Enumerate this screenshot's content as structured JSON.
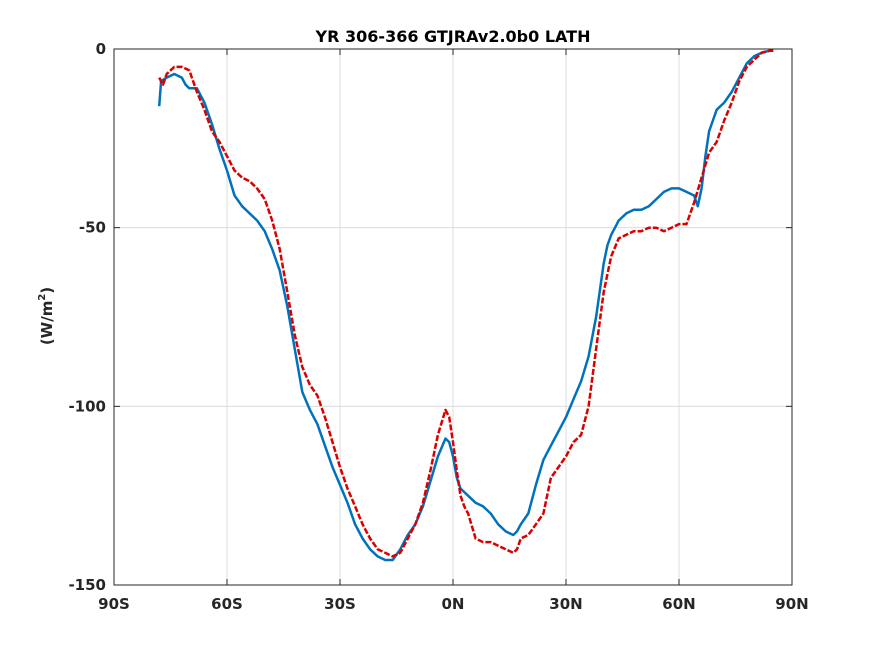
{
  "chart_data": {
    "type": "line",
    "title": "YR 306-366 GTJRAv2.0b0 LATH",
    "ylabel_main": "(W/m",
    "ylabel_sup": "2",
    "ylabel_close": ")",
    "xlabel": "",
    "xlim": [
      -90,
      90
    ],
    "ylim": [
      -150,
      0
    ],
    "xticks": [
      -90,
      -60,
      -30,
      0,
      30,
      60,
      90
    ],
    "xtick_labels": [
      "90S",
      "60S",
      "30S",
      "0N",
      "30N",
      "60N",
      "90N"
    ],
    "yticks": [
      0,
      -50,
      -100,
      -150
    ],
    "ytick_labels": [
      "0",
      "-50",
      "-100",
      "-150"
    ],
    "grid": true,
    "series": [
      {
        "color": "#0072BD",
        "dash": "solid",
        "x": [
          -78,
          -77.5,
          -76,
          -74,
          -72,
          -71,
          -70,
          -68,
          -66,
          -64,
          -62,
          -60,
          -58,
          -56,
          -54,
          -52,
          -50,
          -48,
          -46,
          -44,
          -42,
          -40,
          -38,
          -36,
          -34,
          -32,
          -30,
          -28,
          -26,
          -24,
          -22,
          -20,
          -18,
          -16,
          -14,
          -13,
          -12,
          -10,
          -8,
          -6,
          -4,
          -2,
          -1,
          0,
          1,
          2,
          3,
          4,
          6,
          8,
          10,
          12,
          14,
          16,
          17,
          18,
          20,
          22,
          24,
          26,
          28,
          30,
          32,
          34,
          36,
          38,
          40,
          41,
          42,
          43,
          44,
          46,
          48,
          50,
          52,
          54,
          56,
          58,
          60,
          62,
          64,
          65,
          66,
          67,
          68,
          69,
          70,
          72,
          74,
          76,
          78,
          80,
          82,
          84,
          85
        ],
        "y": [
          -16,
          -9,
          -8,
          -7,
          -8,
          -10,
          -11,
          -11,
          -15,
          -21,
          -28,
          -34,
          -41,
          -44,
          -46,
          -48,
          -51,
          -56,
          -62,
          -72,
          -84,
          -96,
          -101,
          -105,
          -111,
          -117,
          -122,
          -127,
          -133,
          -137,
          -140,
          -142,
          -143,
          -143,
          -140,
          -138,
          -136,
          -133,
          -128,
          -121,
          -114,
          -109,
          -110,
          -114,
          -120,
          -123,
          -124,
          -125,
          -127,
          -128,
          -130,
          -133,
          -135,
          -136,
          -135,
          -133,
          -130,
          -122,
          -115,
          -111,
          -107,
          -103,
          -98,
          -93,
          -86,
          -75,
          -60,
          -55,
          -52,
          -50,
          -48,
          -46,
          -45,
          -45,
          -44,
          -42,
          -40,
          -39,
          -39,
          -40,
          -41,
          -44,
          -39,
          -30,
          -23,
          -20,
          -17,
          -15,
          -12,
          -8,
          -4,
          -2,
          -1,
          -0.5,
          -0.5
        ]
      },
      {
        "color": "#D90000",
        "dash": "dashed",
        "x": [
          -78,
          -77,
          -76,
          -74,
          -72,
          -70,
          -68,
          -66,
          -64,
          -62,
          -60,
          -58,
          -56,
          -54,
          -52,
          -50,
          -48,
          -46,
          -44,
          -42,
          -40,
          -38,
          -36,
          -34,
          -32,
          -30,
          -28,
          -26,
          -24,
          -22,
          -20,
          -18,
          -16,
          -14,
          -13,
          -12,
          -10,
          -8,
          -6,
          -4,
          -2,
          -1,
          0,
          1,
          2,
          3,
          4,
          6,
          8,
          10,
          12,
          14,
          16,
          17,
          18,
          20,
          22,
          24,
          26,
          28,
          30,
          32,
          34,
          36,
          38,
          40,
          42,
          44,
          46,
          48,
          50,
          52,
          54,
          56,
          58,
          60,
          62,
          64,
          66,
          68,
          70,
          72,
          74,
          76,
          78,
          80,
          82,
          84,
          85
        ],
        "y": [
          -8,
          -10,
          -7,
          -5,
          -5,
          -6,
          -12,
          -17,
          -23,
          -26,
          -30,
          -34,
          -36,
          -37,
          -39,
          -42,
          -48,
          -56,
          -68,
          -80,
          -89,
          -94,
          -97,
          -103,
          -110,
          -117,
          -123,
          -128,
          -133,
          -137,
          -140,
          -141,
          -142,
          -141,
          -139,
          -137,
          -133,
          -127,
          -118,
          -108,
          -101,
          -103,
          -110,
          -118,
          -125,
          -128,
          -130,
          -137,
          -138,
          -138,
          -139,
          -140,
          -141,
          -140,
          -137,
          -136,
          -133,
          -130,
          -120,
          -117,
          -114,
          -110,
          -108,
          -100,
          -84,
          -68,
          -58,
          -53,
          -52,
          -51,
          -51,
          -50,
          -50,
          -51,
          -50,
          -49,
          -49,
          -43,
          -36,
          -29,
          -26,
          -20,
          -15,
          -9,
          -5,
          -3,
          -1,
          -0.5,
          -0.5
        ]
      }
    ]
  }
}
